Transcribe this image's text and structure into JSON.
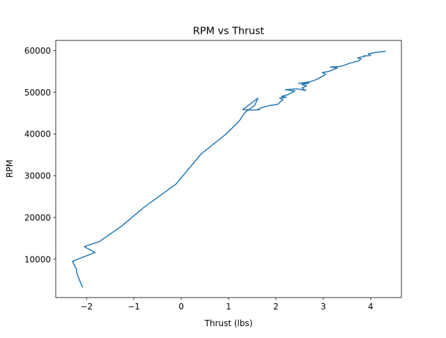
{
  "chart_data": {
    "type": "line",
    "title": "RPM vs Thrust",
    "xlabel": "Thrust (lbs)",
    "ylabel": "RPM",
    "xlim": [
      -2.65,
      4.65
    ],
    "ylim": [
      800,
      62400
    ],
    "x_ticks": [
      -2,
      -1,
      0,
      1,
      2,
      3,
      4
    ],
    "x_tick_labels": [
      "−2",
      "−1",
      "0",
      "1",
      "2",
      "3",
      "4"
    ],
    "y_ticks": [
      10000,
      20000,
      30000,
      40000,
      50000,
      60000
    ],
    "y_tick_labels": [
      "10000",
      "20000",
      "30000",
      "40000",
      "50000",
      "60000"
    ],
    "grid": false,
    "series": [
      {
        "color": "#1f77b4",
        "x": [
          -2.08,
          -2.15,
          -2.2,
          -2.22,
          -2.3,
          -1.82,
          -2.05,
          -1.73,
          -1.25,
          -0.8,
          -0.11,
          0.42,
          0.95,
          1.22,
          1.35,
          1.55,
          1.62,
          1.37,
          1.3,
          1.5,
          1.65,
          1.62,
          1.7,
          1.87,
          2.0,
          2.05,
          2.1,
          2.15,
          2.08,
          2.22,
          2.12,
          2.25,
          2.4,
          2.2,
          2.45,
          2.63,
          2.55,
          2.65,
          2.55,
          2.62,
          2.7,
          2.48,
          2.72,
          2.85,
          2.95,
          3.05,
          2.98,
          3.1,
          3.3,
          3.15,
          3.38,
          3.58,
          3.75,
          3.8,
          3.72,
          3.88,
          3.85,
          4.0,
          3.95,
          4.15,
          4.32
        ],
        "y": [
          3200,
          5000,
          6500,
          7800,
          9500,
          11600,
          13000,
          14200,
          18000,
          22300,
          28000,
          35200,
          40000,
          43000,
          45200,
          46800,
          48600,
          46400,
          45800,
          45700,
          45800,
          45900,
          46300,
          46800,
          47000,
          47200,
          47800,
          48200,
          48600,
          48800,
          49000,
          49400,
          50300,
          50600,
          50800,
          50400,
          51000,
          51500,
          51800,
          52000,
          52200,
          52100,
          52500,
          53000,
          53600,
          54300,
          54700,
          54900,
          55800,
          56000,
          56200,
          57000,
          57500,
          58000,
          58200,
          58600,
          58700,
          58800,
          59200,
          59600,
          59800
        ]
      }
    ]
  }
}
